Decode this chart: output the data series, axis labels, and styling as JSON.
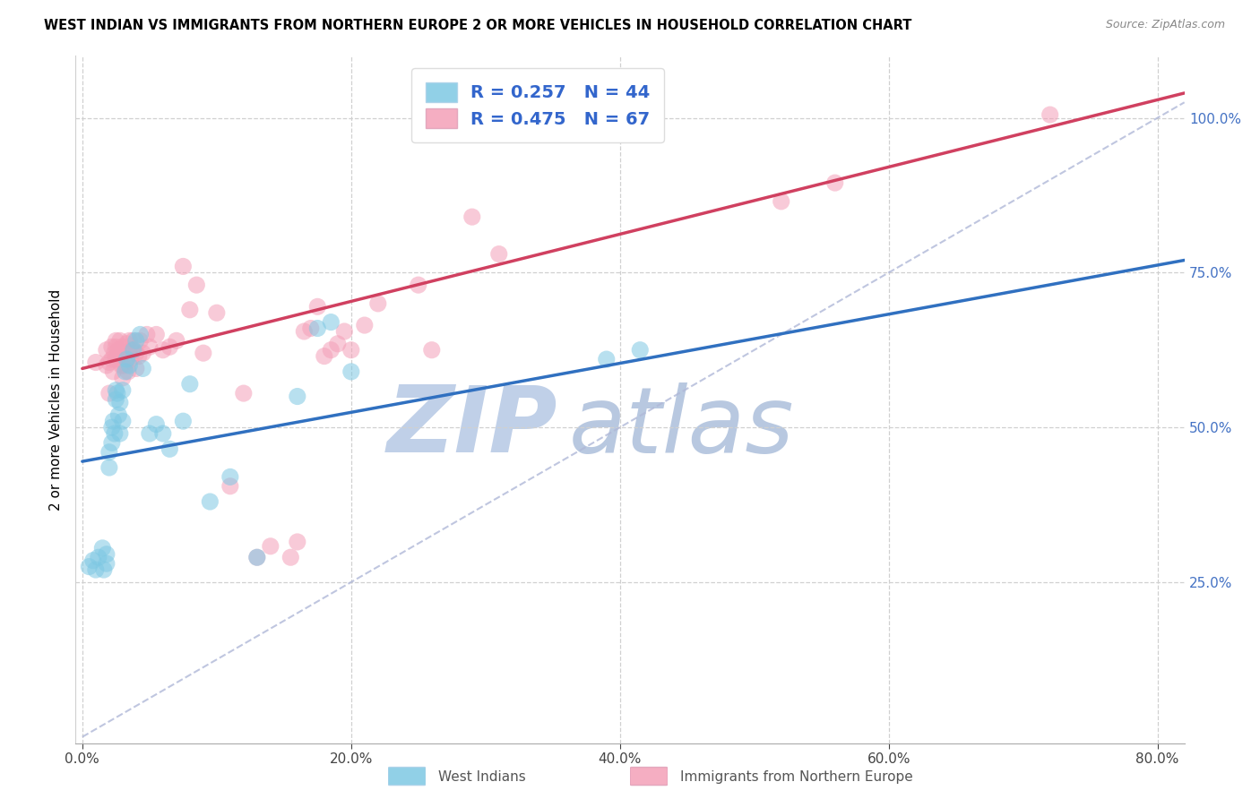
{
  "title": "WEST INDIAN VS IMMIGRANTS FROM NORTHERN EUROPE 2 OR MORE VEHICLES IN HOUSEHOLD CORRELATION CHART",
  "source": "Source: ZipAtlas.com",
  "ylabel": "2 or more Vehicles in Household",
  "xlim": [
    -0.005,
    0.82
  ],
  "ylim": [
    -0.01,
    1.1
  ],
  "xtick_vals": [
    0.0,
    0.2,
    0.4,
    0.6,
    0.8
  ],
  "ytick_vals_right": [
    0.25,
    0.5,
    0.75,
    1.0
  ],
  "blue_color": "#7ec8e3",
  "pink_color": "#f4a0b8",
  "blue_edge_color": "#5ab0d0",
  "pink_edge_color": "#e07090",
  "blue_line_color": "#3070c0",
  "pink_line_color": "#d04060",
  "diag_color": "#b0b8d8",
  "grid_color": "#d0d0d0",
  "watermark_zip_color": "#c0d0e8",
  "watermark_atlas_color": "#b8c8e0",
  "right_axis_color": "#4472c4",
  "legend_text_color": "#3366cc",
  "R_blue": 0.257,
  "N_blue": 44,
  "R_pink": 0.475,
  "N_pink": 67,
  "blue_line_x": [
    0.0,
    0.82
  ],
  "blue_line_y": [
    0.445,
    0.77
  ],
  "pink_line_x": [
    0.0,
    0.82
  ],
  "pink_line_y": [
    0.595,
    1.04
  ],
  "blue_scatter_x": [
    0.005,
    0.008,
    0.01,
    0.012,
    0.015,
    0.016,
    0.018,
    0.018,
    0.02,
    0.02,
    0.022,
    0.022,
    0.023,
    0.024,
    0.025,
    0.025,
    0.026,
    0.027,
    0.028,
    0.028,
    0.03,
    0.03,
    0.032,
    0.033,
    0.035,
    0.038,
    0.04,
    0.043,
    0.045,
    0.05,
    0.055,
    0.06,
    0.065,
    0.075,
    0.08,
    0.095,
    0.11,
    0.13,
    0.16,
    0.175,
    0.185,
    0.2,
    0.39,
    0.415
  ],
  "blue_scatter_y": [
    0.275,
    0.285,
    0.27,
    0.29,
    0.305,
    0.27,
    0.28,
    0.295,
    0.435,
    0.46,
    0.475,
    0.5,
    0.51,
    0.49,
    0.545,
    0.56,
    0.555,
    0.52,
    0.49,
    0.54,
    0.56,
    0.51,
    0.59,
    0.61,
    0.6,
    0.625,
    0.64,
    0.65,
    0.595,
    0.49,
    0.505,
    0.49,
    0.465,
    0.51,
    0.57,
    0.38,
    0.42,
    0.29,
    0.55,
    0.66,
    0.67,
    0.59,
    0.61,
    0.625
  ],
  "pink_scatter_x": [
    0.01,
    0.018,
    0.018,
    0.02,
    0.02,
    0.022,
    0.022,
    0.023,
    0.024,
    0.025,
    0.025,
    0.025,
    0.026,
    0.027,
    0.028,
    0.028,
    0.029,
    0.03,
    0.03,
    0.03,
    0.032,
    0.033,
    0.034,
    0.035,
    0.035,
    0.036,
    0.037,
    0.038,
    0.04,
    0.04,
    0.042,
    0.043,
    0.045,
    0.048,
    0.05,
    0.055,
    0.06,
    0.065,
    0.07,
    0.075,
    0.08,
    0.085,
    0.09,
    0.1,
    0.11,
    0.12,
    0.13,
    0.14,
    0.155,
    0.16,
    0.165,
    0.17,
    0.175,
    0.18,
    0.185,
    0.19,
    0.195,
    0.2,
    0.21,
    0.22,
    0.25,
    0.26,
    0.29,
    0.31,
    0.52,
    0.56,
    0.72
  ],
  "pink_scatter_y": [
    0.605,
    0.6,
    0.625,
    0.555,
    0.605,
    0.61,
    0.63,
    0.59,
    0.62,
    0.61,
    0.63,
    0.64,
    0.615,
    0.625,
    0.615,
    0.64,
    0.6,
    0.58,
    0.6,
    0.63,
    0.6,
    0.635,
    0.59,
    0.62,
    0.64,
    0.61,
    0.625,
    0.64,
    0.595,
    0.62,
    0.615,
    0.64,
    0.62,
    0.65,
    0.63,
    0.65,
    0.625,
    0.63,
    0.64,
    0.76,
    0.69,
    0.73,
    0.62,
    0.685,
    0.405,
    0.555,
    0.29,
    0.308,
    0.29,
    0.315,
    0.655,
    0.66,
    0.695,
    0.615,
    0.625,
    0.635,
    0.655,
    0.625,
    0.665,
    0.7,
    0.73,
    0.625,
    0.84,
    0.78,
    0.865,
    0.895,
    1.005
  ],
  "bottom_legend": [
    {
      "label": "West Indians",
      "color": "#7ec8e3"
    },
    {
      "label": "Immigrants from Northern Europe",
      "color": "#f4a0b8"
    }
  ]
}
